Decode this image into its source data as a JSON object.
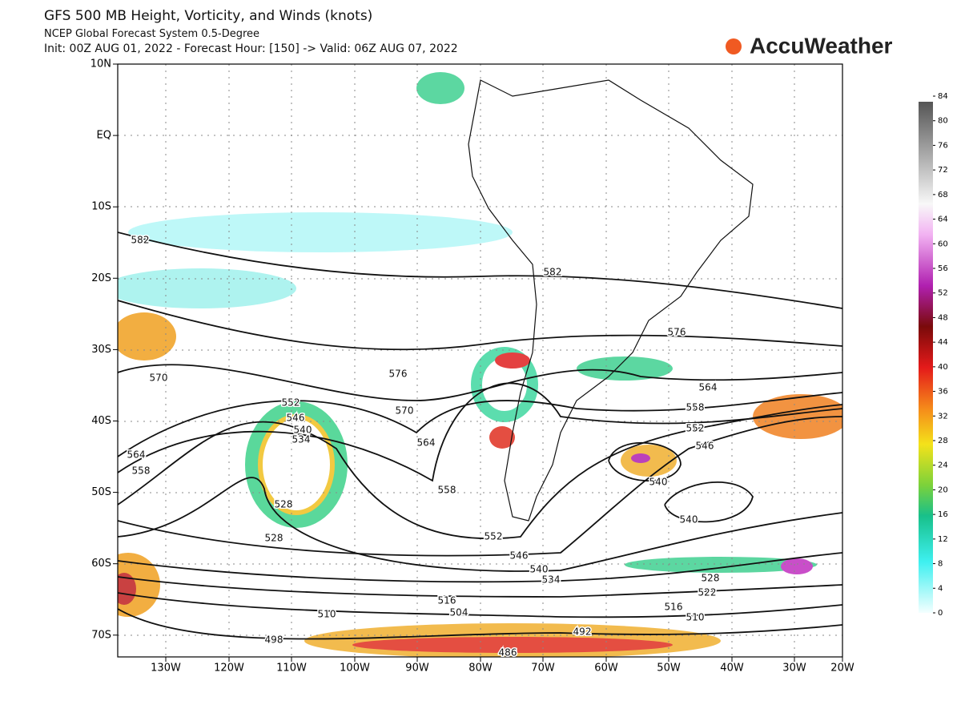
{
  "header": {
    "title": "GFS 500 MB Height, Vorticity, and Winds (knots)",
    "subtitle": "NCEP Global Forecast System 0.5-Degree",
    "init": "Init: 00Z AUG 01, 2022 - Forecast Hour: [150] -> Valid: 06Z AUG 07, 2022"
  },
  "logo": "AccuWeather",
  "map": {
    "lat_labels": [
      "10N",
      "EQ",
      "10S",
      "20S",
      "30S",
      "40S",
      "50S",
      "60S",
      "70S"
    ],
    "lon_labels": [
      "130W",
      "120W",
      "110W",
      "100W",
      "90W",
      "80W",
      "70W",
      "60W",
      "50W",
      "40W",
      "30W",
      "20W"
    ],
    "contour_labels": [
      "582",
      "582",
      "576",
      "576",
      "570",
      "570",
      "564",
      "564",
      "564",
      "558",
      "558",
      "558",
      "552",
      "552",
      "552",
      "546",
      "546",
      "546",
      "540",
      "540",
      "540",
      "540",
      "534",
      "534",
      "528",
      "528",
      "528",
      "522",
      "516",
      "516",
      "510",
      "510",
      "504",
      "498",
      "492",
      "486"
    ]
  },
  "colorbar": {
    "ticks": [
      0,
      4,
      8,
      12,
      16,
      20,
      24,
      28,
      32,
      36,
      40,
      44,
      48,
      52,
      56,
      60,
      64,
      68,
      72,
      76,
      80,
      84
    ]
  }
}
